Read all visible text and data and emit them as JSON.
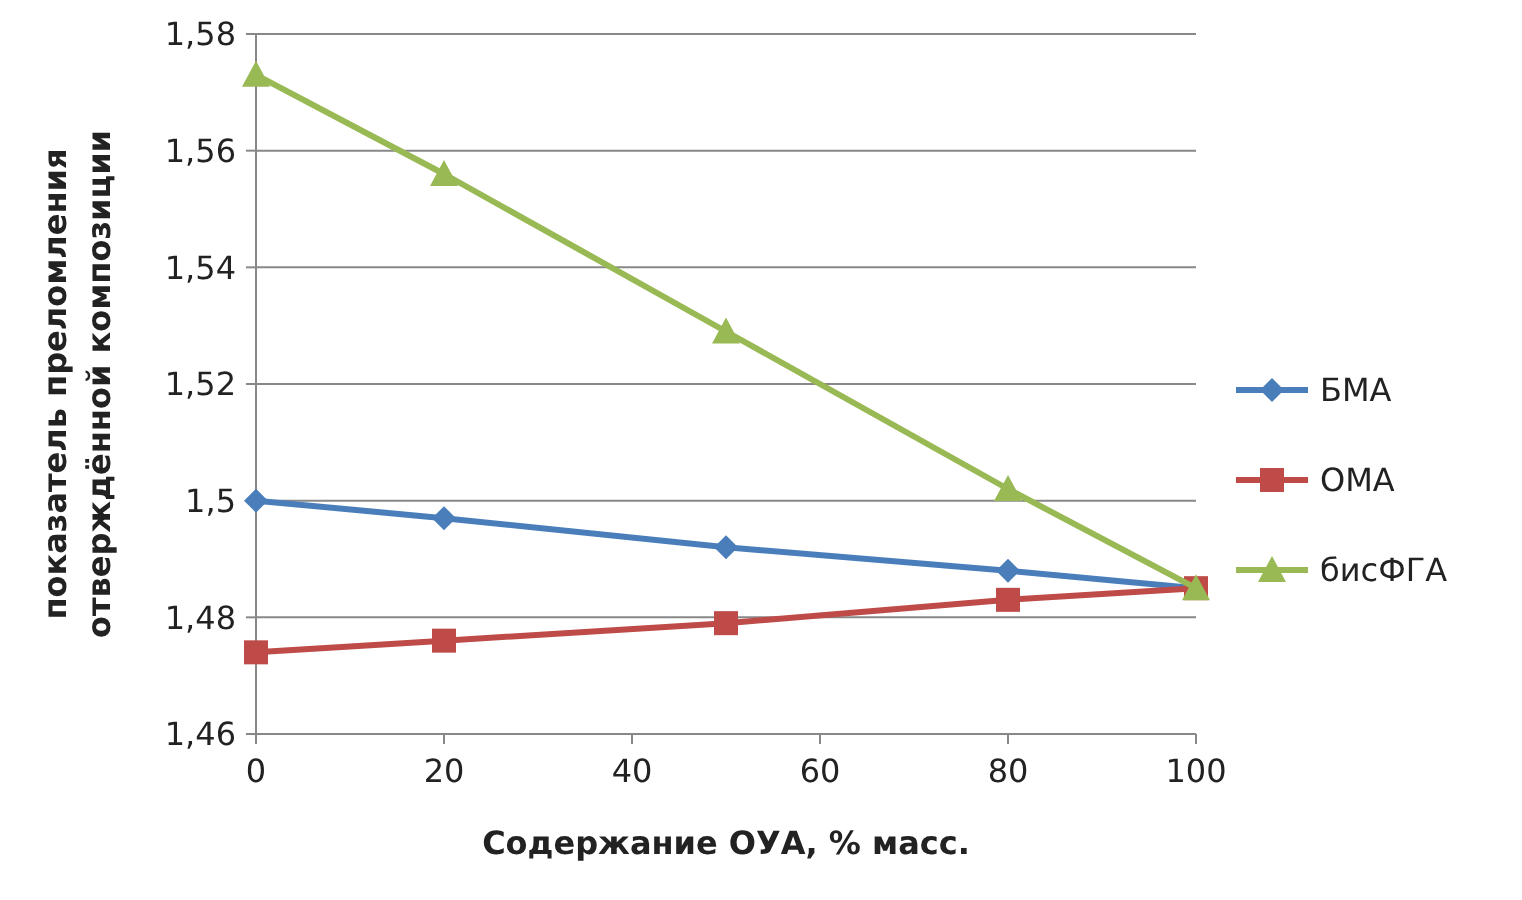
{
  "chart_data": {
    "type": "line",
    "xlabel": "Содержание ОУА, % масс.",
    "ylabel": "показатель преломления отверждённой композиции",
    "x": [
      0,
      20,
      50,
      80,
      100
    ],
    "series": [
      {
        "name": "БМА",
        "color": "#4a7ebb",
        "marker": "diamond",
        "values": [
          1.5,
          1.497,
          1.492,
          1.488,
          1.485
        ]
      },
      {
        "name": "ОМА",
        "color": "#be4b48",
        "marker": "square",
        "values": [
          1.474,
          1.476,
          1.479,
          1.483,
          1.485
        ]
      },
      {
        "name": "бисФГА",
        "color": "#98b954",
        "marker": "triangle",
        "values": [
          1.573,
          1.556,
          1.529,
          1.502,
          1.485
        ]
      }
    ],
    "xlim": [
      0,
      100
    ],
    "xticks": [
      0,
      20,
      40,
      60,
      80,
      100
    ],
    "ylim": [
      1.46,
      1.58
    ],
    "yticks": [
      {
        "value": 1.46,
        "label": "1,46"
      },
      {
        "value": 1.48,
        "label": "1,48"
      },
      {
        "value": 1.5,
        "label": "1,5"
      },
      {
        "value": 1.52,
        "label": "1,52"
      },
      {
        "value": 1.54,
        "label": "1,54"
      },
      {
        "value": 1.56,
        "label": "1,56"
      },
      {
        "value": 1.58,
        "label": "1,58"
      }
    ],
    "grid": "y",
    "legend": "right"
  }
}
